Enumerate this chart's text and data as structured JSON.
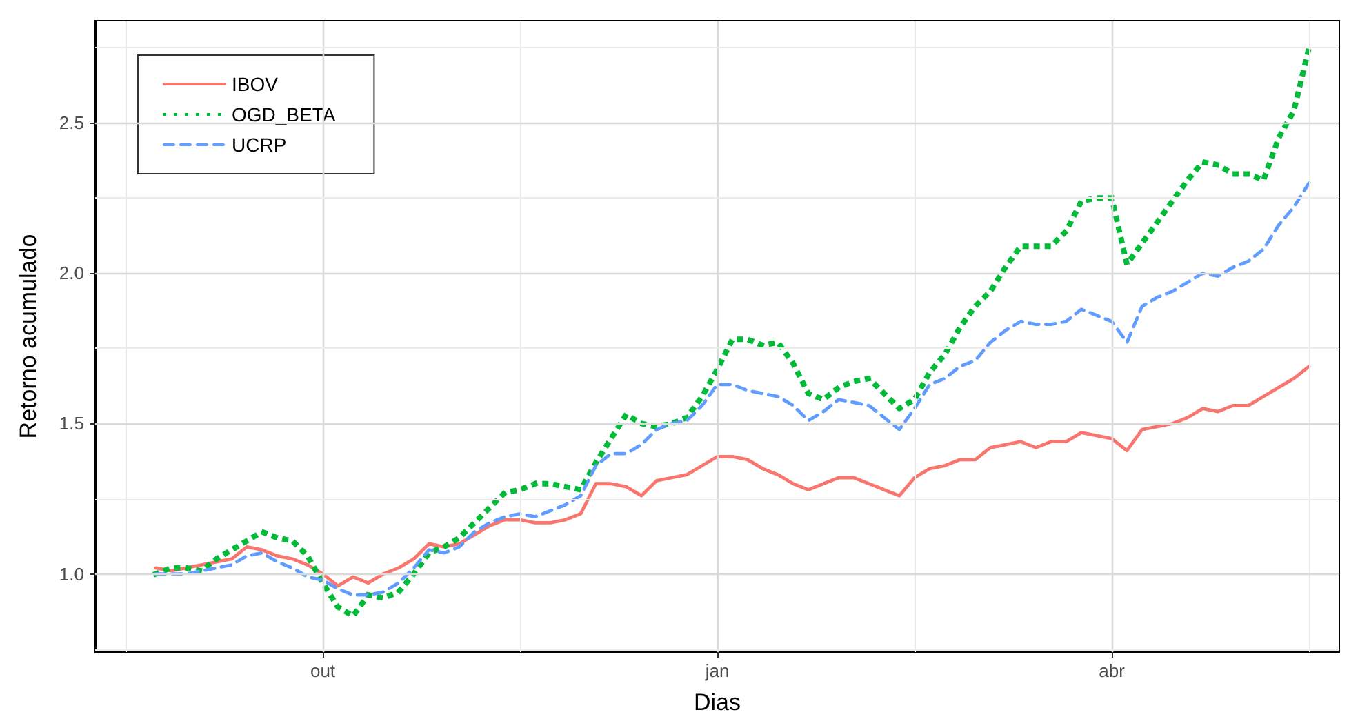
{
  "chart_data": {
    "type": "line",
    "xlabel": "Dias",
    "ylabel": "Retorno acumulado",
    "categories": [
      null,
      null,
      null,
      null,
      null,
      null,
      null,
      null,
      null,
      null,
      null,
      null,
      null,
      null,
      null,
      "out",
      null,
      null,
      null,
      null,
      null,
      null,
      null,
      null,
      null,
      null,
      null,
      null,
      null,
      null,
      null,
      null,
      null,
      null,
      null,
      null,
      null,
      null,
      null,
      null,
      null,
      "jan",
      null,
      null,
      null,
      null,
      null,
      null,
      null,
      null,
      null,
      null,
      null,
      null,
      null,
      null,
      null,
      null,
      null,
      null,
      null,
      null,
      null,
      null,
      null,
      null,
      null,
      "abr",
      null,
      null,
      null,
      null,
      null,
      null,
      null,
      null,
      null,
      null,
      null,
      null,
      null,
      null,
      null
    ],
    "series": [
      {
        "name": "IBOV",
        "color": "#f8766d",
        "line_style": "solid",
        "values": [
          null,
          null,
          null,
          null,
          1.02,
          1.01,
          1.02,
          1.03,
          1.04,
          1.05,
          1.09,
          1.08,
          1.06,
          1.05,
          1.03,
          1.0,
          0.96,
          0.99,
          0.97,
          1.0,
          1.02,
          1.05,
          1.1,
          1.09,
          1.1,
          1.13,
          1.16,
          1.18,
          1.18,
          1.17,
          1.17,
          1.18,
          1.2,
          1.3,
          1.3,
          1.29,
          1.26,
          1.31,
          1.32,
          1.33,
          1.36,
          1.39,
          1.39,
          1.38,
          1.35,
          1.33,
          1.3,
          1.28,
          1.3,
          1.32,
          1.32,
          1.3,
          1.28,
          1.26,
          1.32,
          1.35,
          1.36,
          1.38,
          1.38,
          1.42,
          1.43,
          1.44,
          1.42,
          1.44,
          1.44,
          1.47,
          1.46,
          1.45,
          1.41,
          1.48,
          1.49,
          1.5,
          1.52,
          1.55,
          1.54,
          1.56,
          1.56,
          1.59,
          1.62,
          1.65,
          1.69,
          null,
          null
        ]
      },
      {
        "name": "OGD_BETA",
        "color": "#00ba38",
        "line_style": "dotted",
        "values": [
          null,
          null,
          null,
          null,
          1.0,
          1.02,
          1.02,
          1.01,
          1.05,
          1.08,
          1.11,
          1.14,
          1.12,
          1.11,
          1.06,
          0.97,
          0.89,
          0.86,
          0.93,
          0.92,
          0.94,
          1.0,
          1.07,
          1.09,
          1.12,
          1.17,
          1.22,
          1.27,
          1.28,
          1.3,
          1.3,
          1.29,
          1.28,
          1.37,
          1.45,
          1.53,
          1.5,
          1.49,
          1.5,
          1.52,
          1.59,
          1.68,
          1.78,
          1.78,
          1.76,
          1.77,
          1.7,
          1.6,
          1.58,
          1.62,
          1.64,
          1.65,
          1.6,
          1.55,
          1.58,
          1.67,
          1.73,
          1.82,
          1.89,
          1.94,
          2.02,
          2.09,
          2.09,
          2.09,
          2.14,
          2.24,
          2.25,
          2.25,
          2.03,
          2.1,
          2.17,
          2.24,
          2.31,
          2.37,
          2.36,
          2.33,
          2.33,
          2.31,
          2.45,
          2.54,
          2.75,
          null,
          null
        ]
      },
      {
        "name": "UCRP",
        "color": "#619cff",
        "line_style": "dashed",
        "values": [
          null,
          null,
          null,
          null,
          1.0,
          1.0,
          1.0,
          1.01,
          1.02,
          1.03,
          1.06,
          1.07,
          1.04,
          1.02,
          0.99,
          0.98,
          0.95,
          0.93,
          0.93,
          0.94,
          0.97,
          1.02,
          1.08,
          1.07,
          1.09,
          1.14,
          1.17,
          1.19,
          1.2,
          1.19,
          1.21,
          1.23,
          1.26,
          1.36,
          1.4,
          1.4,
          1.43,
          1.48,
          1.5,
          1.51,
          1.56,
          1.63,
          1.63,
          1.61,
          1.6,
          1.59,
          1.56,
          1.51,
          1.54,
          1.58,
          1.57,
          1.56,
          1.52,
          1.48,
          1.55,
          1.63,
          1.65,
          1.69,
          1.71,
          1.77,
          1.81,
          1.84,
          1.83,
          1.83,
          1.84,
          1.88,
          1.86,
          1.84,
          1.77,
          1.89,
          1.92,
          1.94,
          1.97,
          2.0,
          1.99,
          2.02,
          2.04,
          2.08,
          2.16,
          2.22,
          2.3,
          null,
          null
        ]
      }
    ],
    "ylim": [
      0.74,
      2.84
    ],
    "yticks": [
      {
        "value": 1,
        "label": "1.0"
      },
      {
        "value": 1.5,
        "label": "1.5"
      },
      {
        "value": 2,
        "label": "2.0"
      },
      {
        "value": 2.5,
        "label": "2.5"
      }
    ],
    "grid": true,
    "legend": "top left"
  }
}
